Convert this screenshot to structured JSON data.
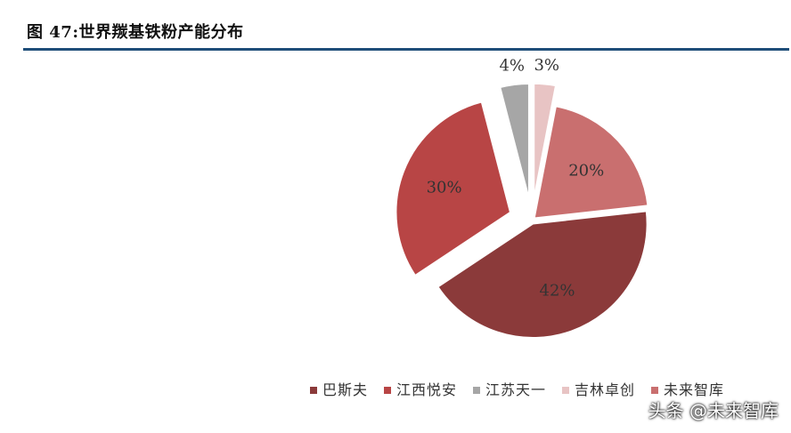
{
  "figure": {
    "title": "图 47:世界羰基铁粉产能分布"
  },
  "chart_data": {
    "type": "pie",
    "title": "",
    "legend_placement": "bottom",
    "categories": [
      "巴斯夫",
      "江西悦安",
      "江苏天一",
      "吉林卓创",
      "未来智库"
    ],
    "values": [
      42,
      30,
      4,
      3,
      20
    ],
    "labels": [
      "42%",
      "30%",
      "4%",
      "3%",
      "20%"
    ],
    "colors": [
      "#8b3a3a",
      "#b84545",
      "#a6a6a6",
      "#e8c4c4",
      "#c96f6f"
    ],
    "exploded": [
      false,
      true,
      true,
      true,
      false
    ]
  },
  "watermark": {
    "text": "头条 @未来智库"
  }
}
